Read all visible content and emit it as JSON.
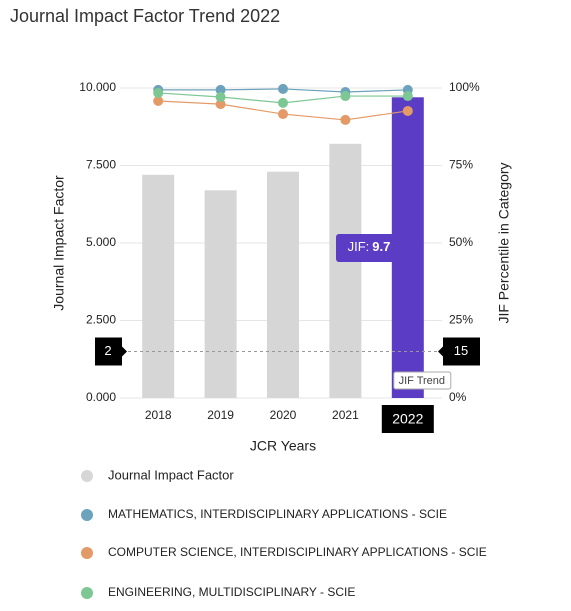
{
  "chart_data": {
    "type": "bar",
    "title": "Journal Impact Factor Trend 2022",
    "xlabel": "JCR Years",
    "ylabel": "Journal Impact Factor",
    "y2label": "JIF Percentile in Category",
    "categories": [
      "2018",
      "2019",
      "2020",
      "2021",
      "2022"
    ],
    "ylim": [
      0,
      10
    ],
    "yticks": [
      {
        "value": 0,
        "label": "0.000"
      },
      {
        "value": 2.5,
        "label": "2.500"
      },
      {
        "value": 5,
        "label": "5.000"
      },
      {
        "value": 7.5,
        "label": "7.500"
      },
      {
        "value": 10,
        "label": "10.000"
      }
    ],
    "y2lim": [
      0,
      100
    ],
    "y2ticks": [
      {
        "value": 0,
        "label": "0%"
      },
      {
        "value": 25,
        "label": "25%"
      },
      {
        "value": 50,
        "label": "50%"
      },
      {
        "value": 75,
        "label": "75%"
      },
      {
        "value": 100,
        "label": "100%"
      }
    ],
    "grid": true,
    "series": [
      {
        "name": "Journal Impact Factor",
        "type": "bar",
        "color": "#d6d6d6",
        "colors": [
          "#d6d6d6",
          "#d6d6d6",
          "#d6d6d6",
          "#d6d6d6",
          "#5b3cc4"
        ],
        "values": [
          7.2,
          6.7,
          7.3,
          8.2,
          9.7
        ]
      },
      {
        "name": "MATHEMATICS, INTERDISCIPLINARY APPLICATIONS - SCIE",
        "type": "line",
        "axis": "y2",
        "color": "#6ca2bc",
        "values": [
          99.4,
          99.4,
          99.7,
          98.7,
          99.4
        ]
      },
      {
        "name": "COMPUTER SCIENCE, INTERDISCIPLINARY APPLICATIONS - SCIE",
        "type": "line",
        "axis": "y2",
        "color": "#e49a67",
        "values": [
          95.8,
          94.8,
          91.6,
          89.7,
          92.6
        ]
      },
      {
        "name": "ENGINEERING, MULTIDISCIPLINARY - SCIE",
        "type": "line",
        "axis": "y2",
        "color": "#7cc793",
        "values": [
          98.4,
          97.1,
          95.2,
          97.4,
          97.4
        ]
      }
    ],
    "tooltip": {
      "label": "JIF:",
      "color": "#5b3cc4"
    },
    "crosshair": {
      "y": {
        "value": 1.5,
        "label": "2"
      },
      "y2": {
        "value": 15,
        "label": "15"
      }
    },
    "annotation": "JIF Trend"
  }
}
